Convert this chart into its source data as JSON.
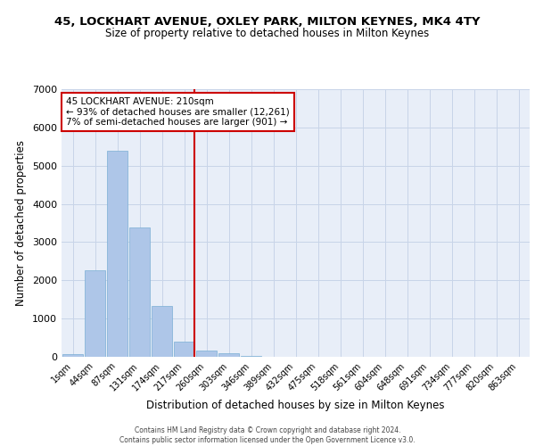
{
  "title_line1": "45, LOCKHART AVENUE, OXLEY PARK, MILTON KEYNES, MK4 4TY",
  "title_line2": "Size of property relative to detached houses in Milton Keynes",
  "xlabel": "Distribution of detached houses by size in Milton Keynes",
  "ylabel": "Number of detached properties",
  "bin_labels": [
    "1sqm",
    "44sqm",
    "87sqm",
    "131sqm",
    "174sqm",
    "217sqm",
    "260sqm",
    "303sqm",
    "346sqm",
    "389sqm",
    "432sqm",
    "475sqm",
    "518sqm",
    "561sqm",
    "604sqm",
    "648sqm",
    "691sqm",
    "734sqm",
    "777sqm",
    "820sqm",
    "863sqm"
  ],
  "bar_heights": [
    60,
    2270,
    5400,
    3380,
    1340,
    400,
    175,
    95,
    20,
    0,
    0,
    0,
    0,
    0,
    0,
    0,
    0,
    0,
    0,
    0,
    0
  ],
  "bar_color": "#aec6e8",
  "bar_edgecolor": "#7aafd4",
  "vline_bin": 5,
  "vline_color": "#cc0000",
  "annotation_line1": "45 LOCKHART AVENUE: 210sqm",
  "annotation_line2": "← 93% of detached houses are smaller (12,261)",
  "annotation_line3": "7% of semi-detached houses are larger (901) →",
  "annotation_box_color": "#cc0000",
  "ylim": [
    0,
    7000
  ],
  "yticks": [
    0,
    1000,
    2000,
    3000,
    4000,
    5000,
    6000,
    7000
  ],
  "grid_color": "#c8d4e8",
  "background_color": "#e8eef8",
  "footer_line1": "Contains HM Land Registry data © Crown copyright and database right 2024.",
  "footer_line2": "Contains public sector information licensed under the Open Government Licence v3.0."
}
